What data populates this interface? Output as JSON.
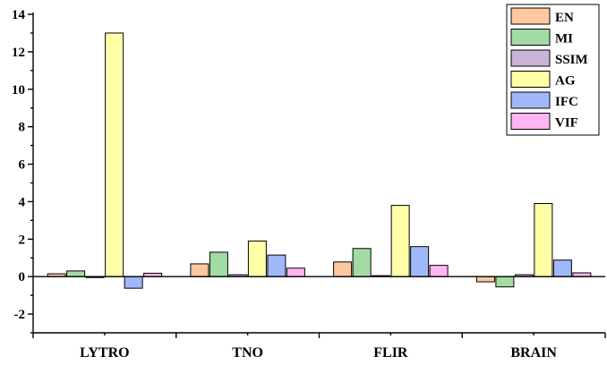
{
  "chart_data": {
    "type": "bar",
    "categories": [
      "LYTRO",
      "TNO",
      "FLIR",
      "BRAIN"
    ],
    "series": [
      {
        "name": "EN",
        "color": "#FFC8A0",
        "values": [
          0.15,
          0.68,
          0.78,
          -0.28
        ]
      },
      {
        "name": "MI",
        "color": "#A2DCA2",
        "values": [
          0.3,
          1.3,
          1.5,
          -0.55
        ]
      },
      {
        "name": "SSIM",
        "color": "#C8B4D8",
        "values": [
          -0.05,
          0.1,
          0.05,
          0.1
        ]
      },
      {
        "name": "AG",
        "color": "#FFFFA8",
        "values": [
          13.0,
          1.9,
          3.8,
          3.9
        ]
      },
      {
        "name": "IFC",
        "color": "#A0B8F8",
        "values": [
          -0.62,
          1.15,
          1.6,
          0.88
        ]
      },
      {
        "name": "VIF",
        "color": "#FFB4F4",
        "values": [
          0.18,
          0.45,
          0.6,
          0.2
        ]
      }
    ],
    "ylim": [
      -3,
      14
    ],
    "yticks": [
      -2,
      0,
      2,
      4,
      6,
      8,
      10,
      12,
      14
    ],
    "title": "",
    "xlabel": "",
    "ylabel": "",
    "legend": "top-right",
    "grid": false
  }
}
